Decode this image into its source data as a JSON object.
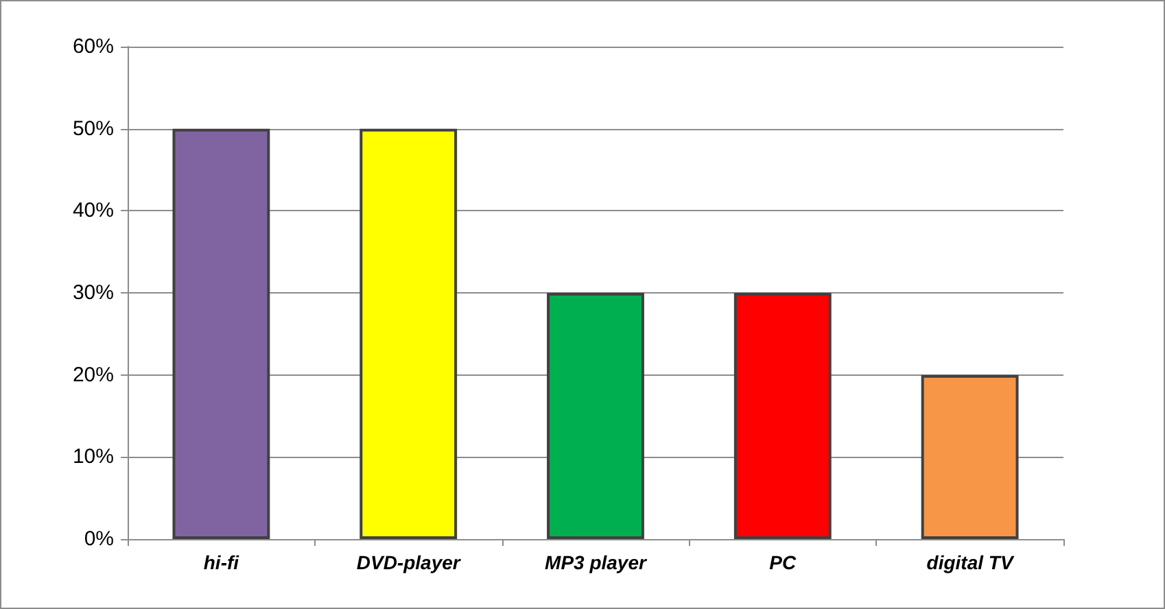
{
  "chart_data": {
    "type": "bar",
    "categories": [
      "hi-fi",
      "DVD-player",
      "MP3 player",
      "PC",
      "digital TV"
    ],
    "values": [
      50,
      50,
      30,
      30,
      20
    ],
    "colors": [
      "#8064a2",
      "#ffff00",
      "#00b050",
      "#ff0000",
      "#f79646"
    ],
    "ylim": [
      0,
      60
    ],
    "yticks": [
      {
        "value": 0,
        "label": "0%"
      },
      {
        "value": 10,
        "label": "10%"
      },
      {
        "value": 20,
        "label": "20%"
      },
      {
        "value": 30,
        "label": "30%"
      },
      {
        "value": 40,
        "label": "40%"
      },
      {
        "value": 50,
        "label": "50%"
      },
      {
        "value": 60,
        "label": "60%"
      }
    ],
    "grid": "y"
  }
}
